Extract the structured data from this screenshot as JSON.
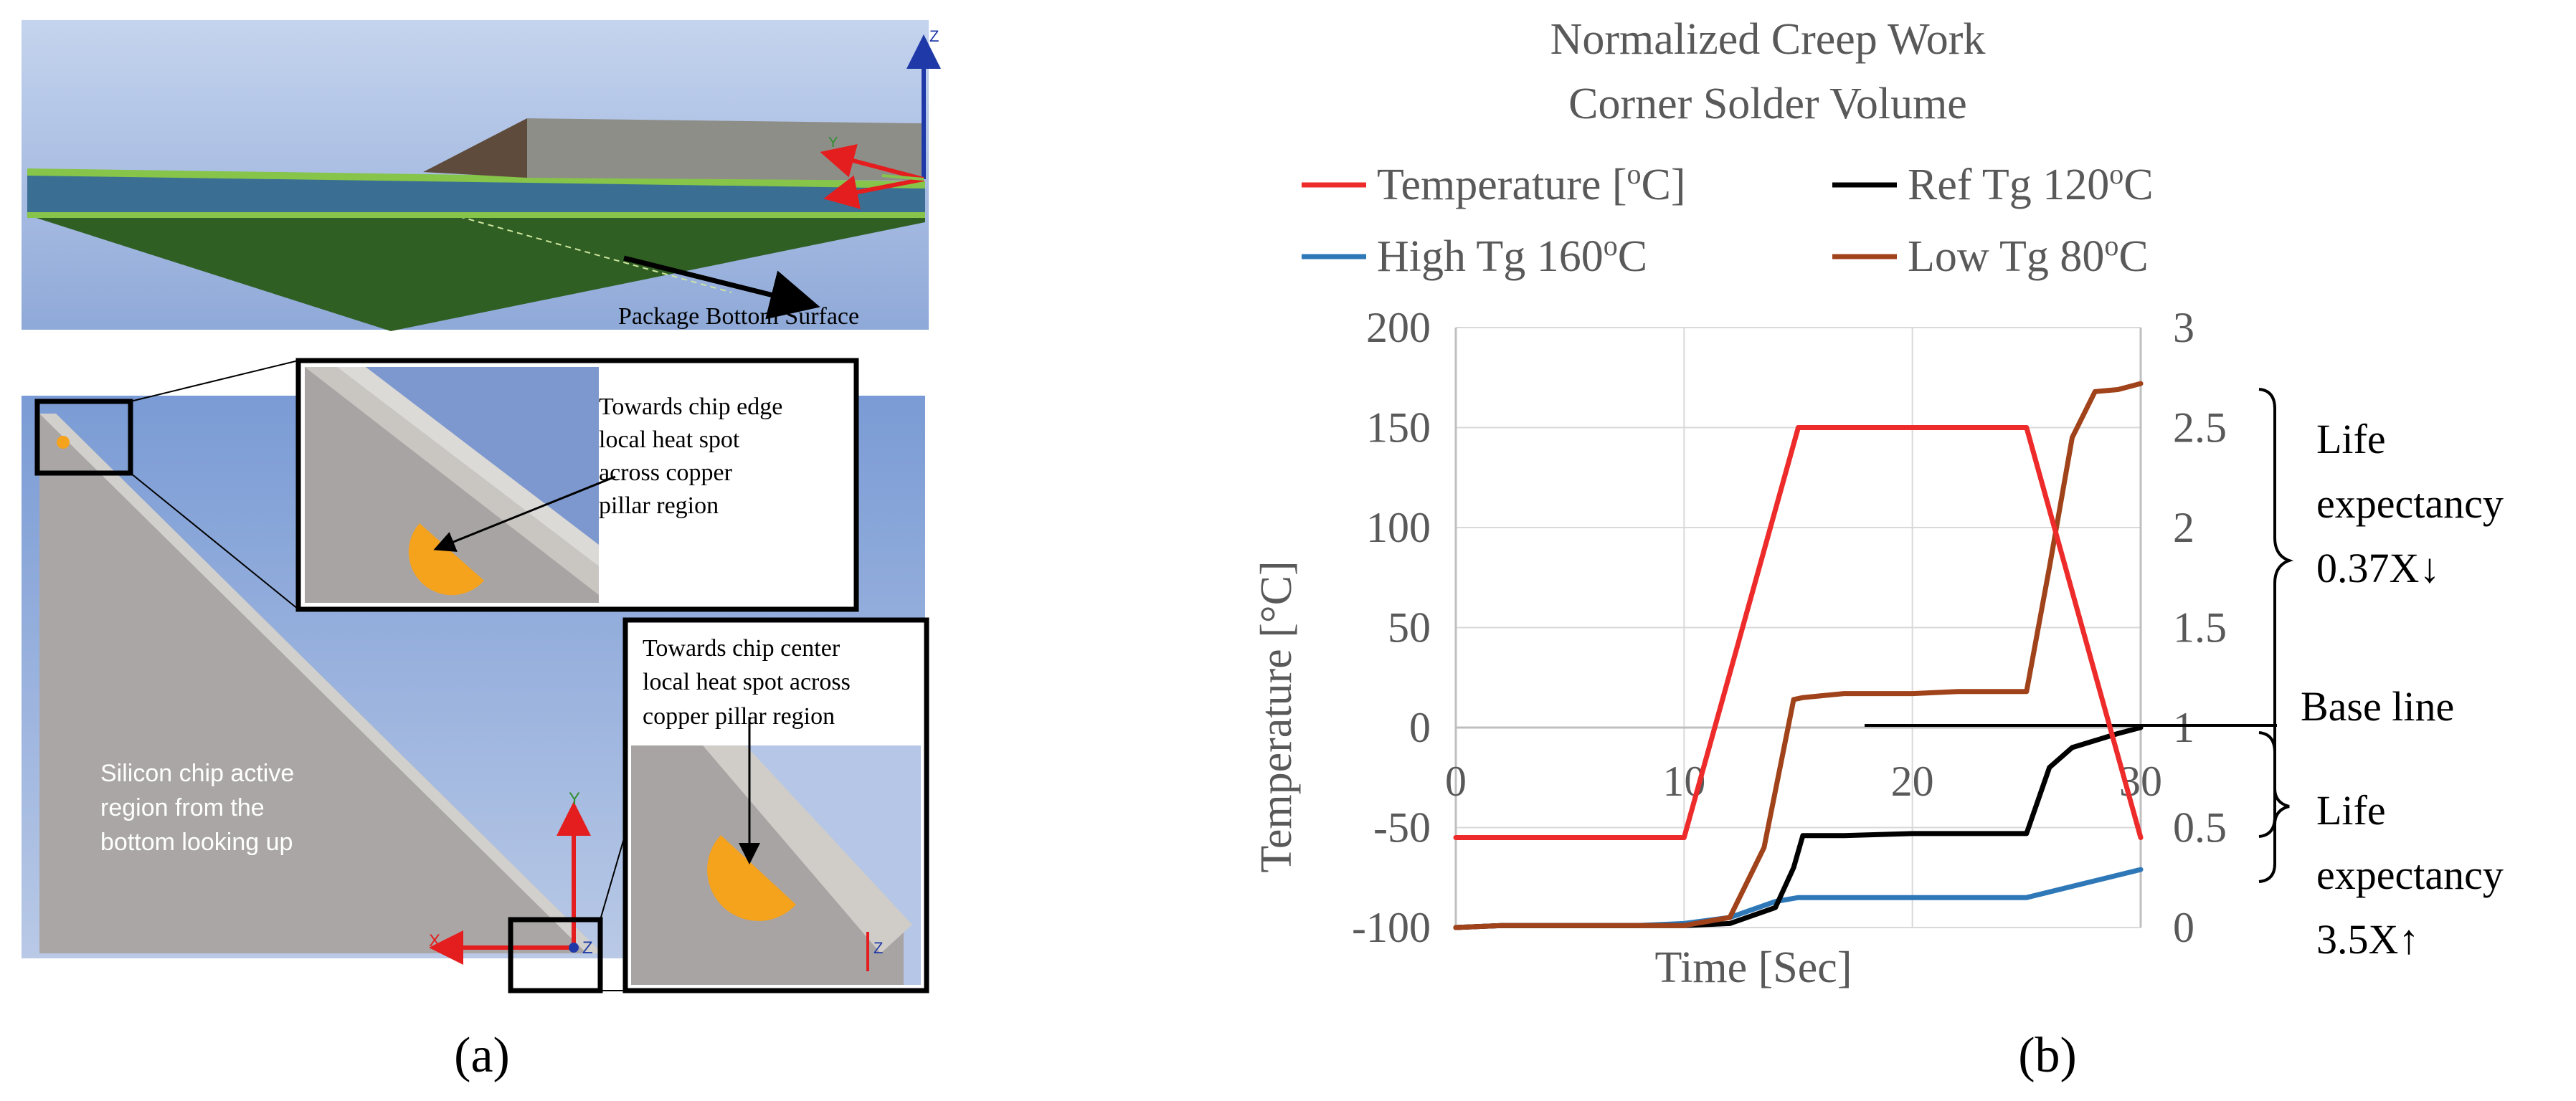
{
  "panel_a": {
    "label": "(a)",
    "top_view": {
      "annotation": "Package Bottom Surface",
      "axis_z": "Z",
      "axis_y": "Y"
    },
    "inset1": {
      "text": [
        "Towards chip edge",
        "local heat spot",
        "across copper",
        "pillar region"
      ]
    },
    "inset2": {
      "text": [
        "Towards chip center",
        "local heat spot across",
        "copper pillar region"
      ],
      "axis_z": "Z"
    },
    "chip_text": [
      "Silicon chip active",
      "region from the",
      "bottom looking up"
    ],
    "axes": {
      "x": "X",
      "y": "Y",
      "z": "Z"
    },
    "colors": {
      "sky": "#9cb7e3",
      "chip": "#aaa6a6",
      "hotspot": "#f5a21c",
      "board": "#2f5f23",
      "axis_red": "#e41e1e"
    }
  },
  "panel_b": {
    "label": "(b)",
    "annotations": {
      "upper": [
        "Life",
        "expectancy",
        "0.37X↓"
      ],
      "baseline": "Base line",
      "lower": [
        "Life",
        "expectancy",
        "3.5X↑"
      ]
    }
  },
  "chart_data": {
    "type": "line",
    "title": [
      "Normalized  Creep Work",
      "Corner Solder Volume"
    ],
    "xlabel": "Time [Sec]",
    "ylabel": "Temperature  [°C]",
    "xlim": [
      0,
      30
    ],
    "ylim": [
      -100,
      200
    ],
    "y2lim": [
      0,
      3
    ],
    "x_ticks": [
      "0",
      "10",
      "20",
      "30"
    ],
    "y_ticks": [
      "-100",
      "-50",
      "0",
      "50",
      "100",
      "150",
      "200"
    ],
    "y2_ticks": [
      "0",
      "0.5",
      "1",
      "1.5",
      "2",
      "2.5",
      "3"
    ],
    "grid": true,
    "legend_position": "top",
    "series": [
      {
        "name": "Temperature [",
        "sup": "o",
        "suffix": "C]",
        "color": "#ee2b2b",
        "axis": "left",
        "x": [
          0,
          10,
          15,
          25,
          30
        ],
        "y": [
          -55,
          -55,
          150,
          150,
          -55
        ]
      },
      {
        "name": "Ref Tg 120",
        "sup": "o",
        "suffix": "C",
        "color": "#000000",
        "axis": "right",
        "x": [
          0,
          2,
          10,
          12,
          14,
          14.8,
          15.2,
          17,
          20,
          22,
          25,
          26,
          27,
          29,
          30
        ],
        "y": [
          0,
          0.01,
          0.01,
          0.02,
          0.1,
          0.3,
          0.46,
          0.46,
          0.47,
          0.47,
          0.47,
          0.8,
          0.9,
          0.97,
          1.0
        ]
      },
      {
        "name": "High Tg 160",
        "sup": "o",
        "suffix": "C",
        "color": "#2e78b8",
        "axis": "right",
        "x": [
          0,
          2,
          8,
          10,
          12,
          14,
          15,
          20,
          25,
          30
        ],
        "y": [
          0,
          0.01,
          0.01,
          0.02,
          0.05,
          0.13,
          0.15,
          0.15,
          0.15,
          0.29
        ]
      },
      {
        "name": "Low Tg 80",
        "sup": "o",
        "suffix": "C",
        "color": "#a0421a",
        "axis": "right",
        "x": [
          0,
          2,
          10,
          12,
          13.5,
          14.8,
          15.2,
          17,
          20,
          22,
          25,
          26,
          27,
          28,
          29,
          30
        ],
        "y": [
          0,
          0.01,
          0.01,
          0.05,
          0.4,
          1.14,
          1.15,
          1.17,
          1.17,
          1.18,
          1.18,
          1.8,
          2.45,
          2.68,
          2.69,
          2.72
        ]
      }
    ]
  }
}
